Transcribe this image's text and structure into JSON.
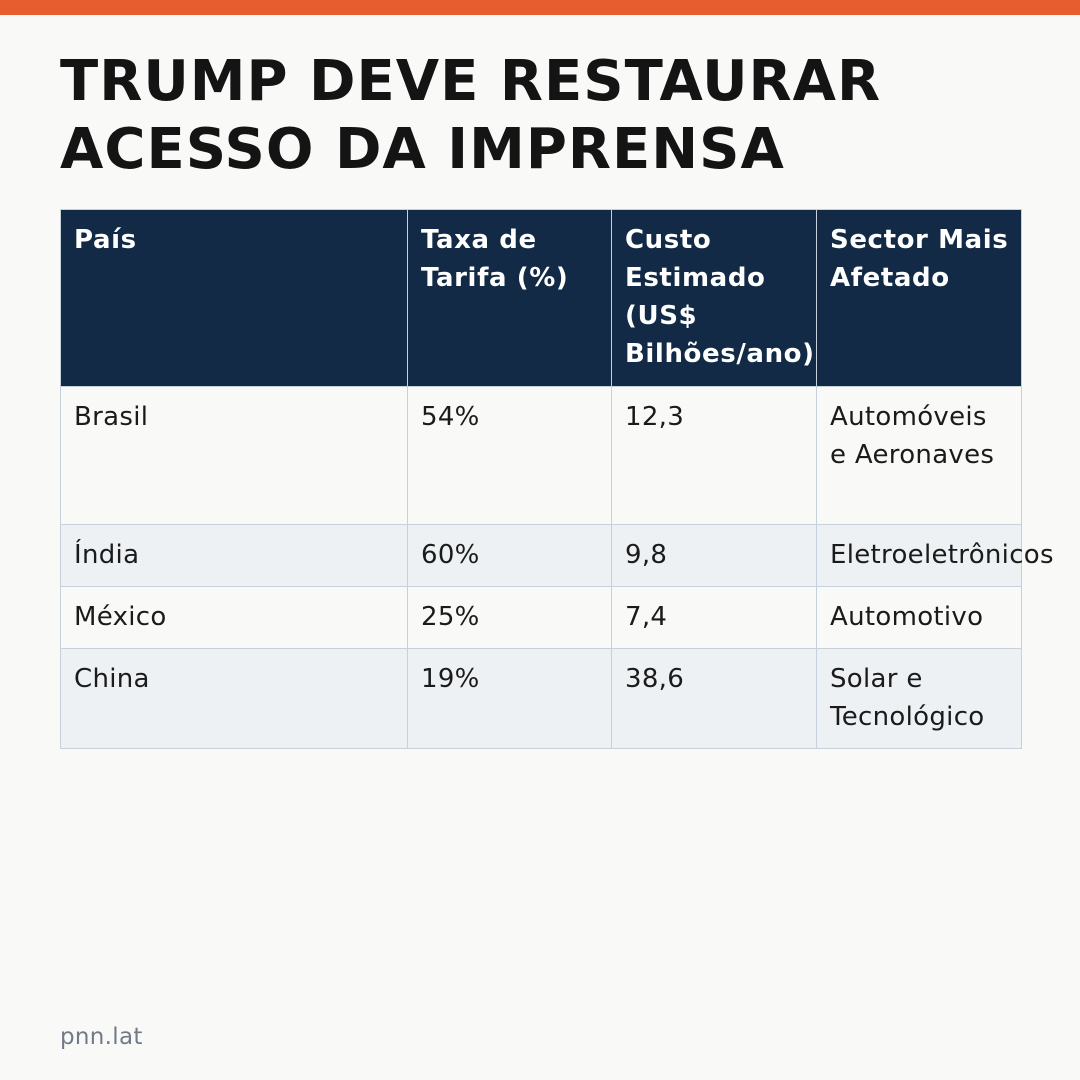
{
  "accent_color": "#e85d30",
  "header_color": "#122a45",
  "title": {
    "line1": "TRUMP DEVE RESTAURAR",
    "line2": "ACESSO DA IMPRENSA"
  },
  "table": {
    "headers": [
      "País",
      "Taxa de Tarifa (%)",
      "Custo Estimado (US$ Bilhões/ano)",
      "Sector Mais Afetado"
    ],
    "rows": [
      [
        "Brasil",
        "54%",
        "12,3",
        "Automóveis e Aeronaves"
      ],
      [
        "Índia",
        "60%",
        "9,8",
        "Eletroeletrônicos"
      ],
      [
        "México",
        "25%",
        "7,4",
        "Automotivo"
      ],
      [
        "China",
        "19%",
        "38,6",
        "Solar e Tecnológico"
      ]
    ]
  },
  "footer": {
    "source": "pnn.lat"
  }
}
